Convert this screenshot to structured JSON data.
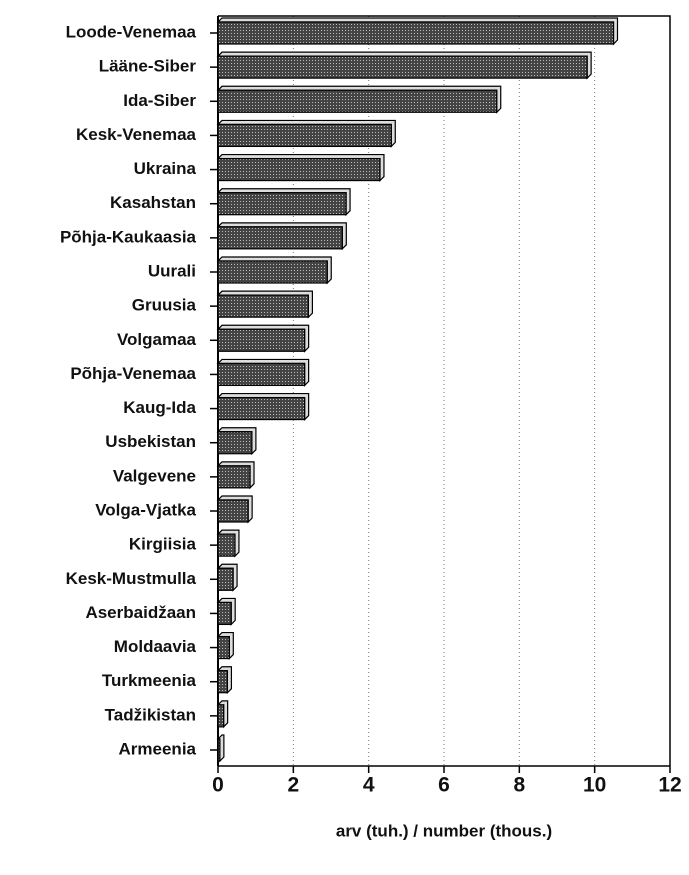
{
  "chart_data": {
    "type": "bar",
    "orientation": "horizontal",
    "categories": [
      "Loode-Venemaa",
      "Lääne-Siber",
      "Ida-Siber",
      "Kesk-Venemaa",
      "Ukraina",
      "Kasahstan",
      "Põhja-Kaukaasia",
      "Uurali",
      "Gruusia",
      "Volgamaa",
      "Põhja-Venemaa",
      "Kaug-Ida",
      "Usbekistan",
      "Valgevene",
      "Volga-Vjatka",
      "Kirgiisia",
      "Kesk-Mustmulla",
      "Aserbaidžaan",
      "Moldaavia",
      "Turkmeenia",
      "Tadžikistan",
      "Armeenia"
    ],
    "values": [
      10.5,
      9.8,
      7.4,
      4.6,
      4.3,
      3.4,
      3.3,
      2.9,
      2.4,
      2.3,
      2.3,
      2.3,
      0.9,
      0.85,
      0.8,
      0.45,
      0.4,
      0.35,
      0.3,
      0.25,
      0.15,
      0.05
    ],
    "color": "#555555",
    "xlim": [
      0,
      12
    ],
    "xticks": [
      0,
      2,
      4,
      6,
      8,
      10,
      12
    ],
    "grid": true,
    "x_label": "arv (tuh.) / number (thous.)"
  }
}
